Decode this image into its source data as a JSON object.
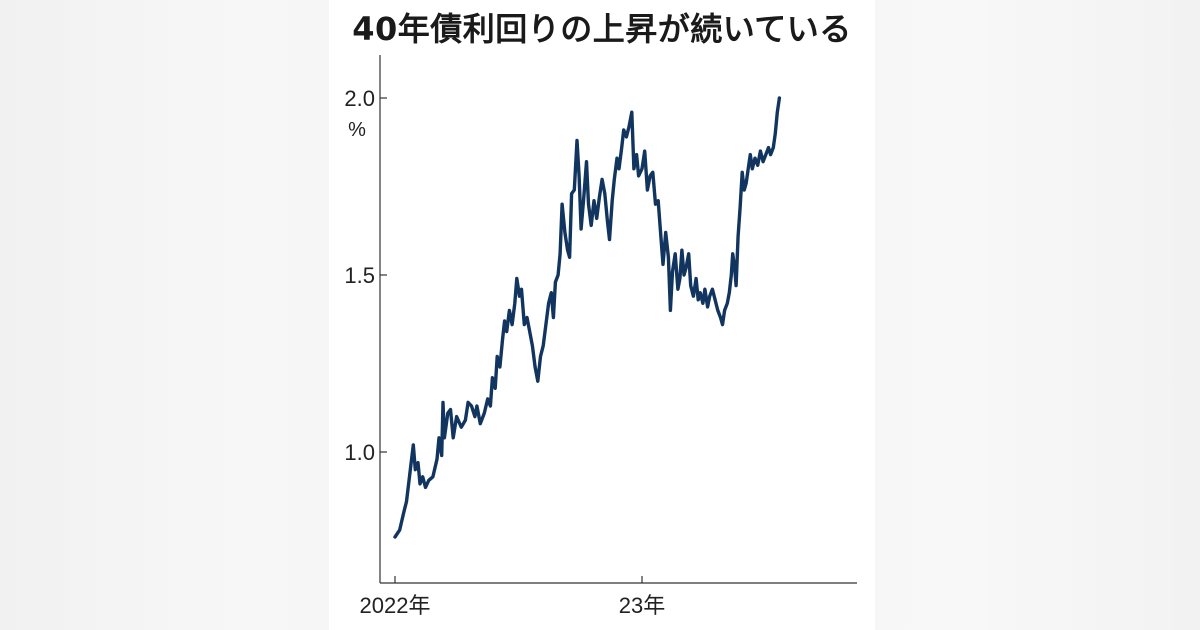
{
  "chart_data": {
    "type": "line",
    "title": "40年債利回りの上昇が続いている",
    "ylabel": "%",
    "ylim": [
      0.7,
      2.12
    ],
    "grid": false,
    "legend": "none",
    "x_ticks": [
      {
        "date": "2022-01-04",
        "label": "2022年"
      },
      {
        "date": "2023-01-04",
        "label": "23年"
      }
    ],
    "y_ticks": [
      {
        "value": 1.0,
        "label": "1.0"
      },
      {
        "value": 1.5,
        "label": "1.5"
      },
      {
        "value": 2.0,
        "label": "2.0"
      }
    ],
    "series": [
      {
        "color": "#12355f",
        "points": [
          [
            "2022-01-04",
            0.76
          ],
          [
            "2022-01-11",
            0.78
          ],
          [
            "2022-01-17",
            0.83
          ],
          [
            "2022-01-21",
            0.86
          ],
          [
            "2022-01-26",
            0.94
          ],
          [
            "2022-01-31",
            1.02
          ],
          [
            "2022-02-03",
            0.95
          ],
          [
            "2022-02-07",
            0.97
          ],
          [
            "2022-02-10",
            0.91
          ],
          [
            "2022-02-14",
            0.93
          ],
          [
            "2022-02-18",
            0.9
          ],
          [
            "2022-02-23",
            0.92
          ],
          [
            "2022-03-01",
            0.93
          ],
          [
            "2022-03-07",
            0.98
          ],
          [
            "2022-03-10",
            1.04
          ],
          [
            "2022-03-14",
            0.99
          ],
          [
            "2022-03-16",
            1.14
          ],
          [
            "2022-03-18",
            1.04
          ],
          [
            "2022-03-23",
            1.11
          ],
          [
            "2022-03-27",
            1.12
          ],
          [
            "2022-03-31",
            1.04
          ],
          [
            "2022-04-05",
            1.1
          ],
          [
            "2022-04-12",
            1.07
          ],
          [
            "2022-04-18",
            1.09
          ],
          [
            "2022-04-22",
            1.14
          ],
          [
            "2022-04-27",
            1.13
          ],
          [
            "2022-05-02",
            1.1
          ],
          [
            "2022-05-05",
            1.13
          ],
          [
            "2022-05-10",
            1.08
          ],
          [
            "2022-05-16",
            1.11
          ],
          [
            "2022-05-21",
            1.15
          ],
          [
            "2022-05-25",
            1.13
          ],
          [
            "2022-05-28",
            1.21
          ],
          [
            "2022-06-01",
            1.18
          ],
          [
            "2022-06-04",
            1.27
          ],
          [
            "2022-06-08",
            1.24
          ],
          [
            "2022-06-12",
            1.32
          ],
          [
            "2022-06-15",
            1.37
          ],
          [
            "2022-06-18",
            1.34
          ],
          [
            "2022-06-22",
            1.4
          ],
          [
            "2022-06-26",
            1.36
          ],
          [
            "2022-06-30",
            1.42
          ],
          [
            "2022-07-03",
            1.49
          ],
          [
            "2022-07-07",
            1.44
          ],
          [
            "2022-07-10",
            1.46
          ],
          [
            "2022-07-14",
            1.36
          ],
          [
            "2022-07-18",
            1.38
          ],
          [
            "2022-07-22",
            1.34
          ],
          [
            "2022-07-26",
            1.3
          ],
          [
            "2022-07-30",
            1.24
          ],
          [
            "2022-08-03",
            1.2
          ],
          [
            "2022-08-07",
            1.27
          ],
          [
            "2022-08-11",
            1.3
          ],
          [
            "2022-08-15",
            1.36
          ],
          [
            "2022-08-19",
            1.42
          ],
          [
            "2022-08-23",
            1.45
          ],
          [
            "2022-08-26",
            1.38
          ],
          [
            "2022-08-29",
            1.48
          ],
          [
            "2022-09-02",
            1.5
          ],
          [
            "2022-09-05",
            1.56
          ],
          [
            "2022-09-08",
            1.7
          ],
          [
            "2022-09-12",
            1.62
          ],
          [
            "2022-09-16",
            1.57
          ],
          [
            "2022-09-19",
            1.55
          ],
          [
            "2022-09-22",
            1.73
          ],
          [
            "2022-09-26",
            1.74
          ],
          [
            "2022-09-30",
            1.88
          ],
          [
            "2022-10-03",
            1.78
          ],
          [
            "2022-10-06",
            1.63
          ],
          [
            "2022-10-10",
            1.72
          ],
          [
            "2022-10-14",
            1.82
          ],
          [
            "2022-10-17",
            1.7
          ],
          [
            "2022-10-21",
            1.64
          ],
          [
            "2022-10-25",
            1.71
          ],
          [
            "2022-10-29",
            1.66
          ],
          [
            "2022-11-02",
            1.72
          ],
          [
            "2022-11-06",
            1.77
          ],
          [
            "2022-11-10",
            1.73
          ],
          [
            "2022-11-14",
            1.65
          ],
          [
            "2022-11-17",
            1.6
          ],
          [
            "2022-11-21",
            1.71
          ],
          [
            "2022-11-24",
            1.77
          ],
          [
            "2022-11-28",
            1.83
          ],
          [
            "2022-12-01",
            1.8
          ],
          [
            "2022-12-05",
            1.86
          ],
          [
            "2022-12-08",
            1.91
          ],
          [
            "2022-12-12",
            1.89
          ],
          [
            "2022-12-16",
            1.92
          ],
          [
            "2022-12-20",
            1.96
          ],
          [
            "2022-12-23",
            1.8
          ],
          [
            "2022-12-27",
            1.84
          ],
          [
            "2022-12-30",
            1.78
          ],
          [
            "2023-01-04",
            1.8
          ],
          [
            "2023-01-08",
            1.85
          ],
          [
            "2023-01-12",
            1.74
          ],
          [
            "2023-01-16",
            1.78
          ],
          [
            "2023-01-20",
            1.79
          ],
          [
            "2023-01-24",
            1.7
          ],
          [
            "2023-01-28",
            1.71
          ],
          [
            "2023-01-31",
            1.63
          ],
          [
            "2023-02-04",
            1.53
          ],
          [
            "2023-02-08",
            1.62
          ],
          [
            "2023-02-12",
            1.55
          ],
          [
            "2023-02-15",
            1.4
          ],
          [
            "2023-02-18",
            1.51
          ],
          [
            "2023-02-22",
            1.56
          ],
          [
            "2023-02-26",
            1.46
          ],
          [
            "2023-03-01",
            1.49
          ],
          [
            "2023-03-04",
            1.57
          ],
          [
            "2023-03-07",
            1.5
          ],
          [
            "2023-03-10",
            1.52
          ],
          [
            "2023-03-14",
            1.56
          ],
          [
            "2023-03-17",
            1.47
          ],
          [
            "2023-03-21",
            1.44
          ],
          [
            "2023-03-25",
            1.49
          ],
          [
            "2023-03-28",
            1.43
          ],
          [
            "2023-03-31",
            1.45
          ],
          [
            "2023-04-04",
            1.42
          ],
          [
            "2023-04-07",
            1.46
          ],
          [
            "2023-04-11",
            1.41
          ],
          [
            "2023-04-14",
            1.44
          ],
          [
            "2023-04-18",
            1.46
          ],
          [
            "2023-04-22",
            1.43
          ],
          [
            "2023-04-26",
            1.4
          ],
          [
            "2023-04-30",
            1.38
          ],
          [
            "2023-05-03",
            1.36
          ],
          [
            "2023-05-06",
            1.4
          ],
          [
            "2023-05-10",
            1.42
          ],
          [
            "2023-05-13",
            1.45
          ],
          [
            "2023-05-16",
            1.5
          ],
          [
            "2023-05-18",
            1.56
          ],
          [
            "2023-05-21",
            1.52
          ],
          [
            "2023-05-23",
            1.47
          ],
          [
            "2023-05-26",
            1.61
          ],
          [
            "2023-05-29",
            1.69
          ],
          [
            "2023-06-01",
            1.79
          ],
          [
            "2023-06-04",
            1.74
          ],
          [
            "2023-06-07",
            1.76
          ],
          [
            "2023-06-10",
            1.8
          ],
          [
            "2023-06-13",
            1.84
          ],
          [
            "2023-06-16",
            1.8
          ],
          [
            "2023-06-20",
            1.83
          ],
          [
            "2023-06-24",
            1.81
          ],
          [
            "2023-06-28",
            1.85
          ],
          [
            "2023-07-02",
            1.82
          ],
          [
            "2023-07-06",
            1.84
          ],
          [
            "2023-07-10",
            1.86
          ],
          [
            "2023-07-13",
            1.84
          ],
          [
            "2023-07-17",
            1.86
          ],
          [
            "2023-07-20",
            1.9
          ],
          [
            "2023-07-23",
            1.96
          ],
          [
            "2023-07-26",
            2.0
          ]
        ]
      }
    ]
  }
}
